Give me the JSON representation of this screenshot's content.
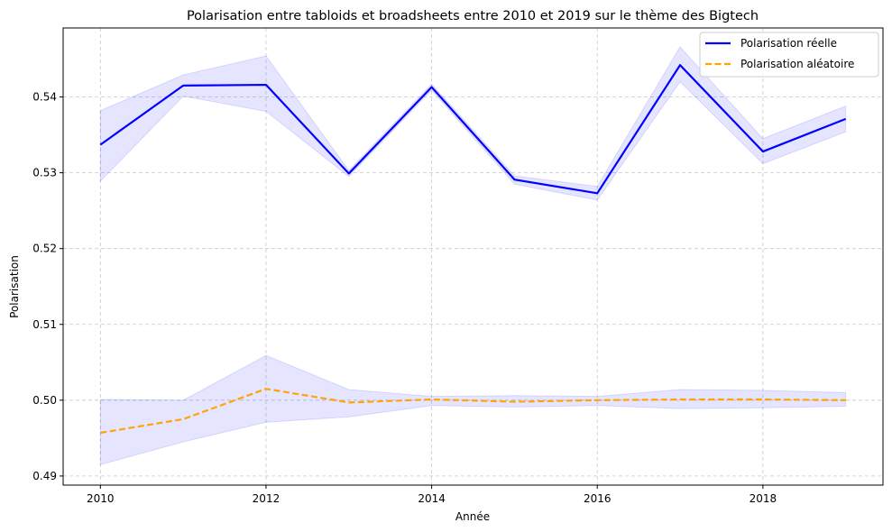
{
  "chart_data": {
    "type": "line",
    "title": "Polarisation entre tabloids et broadsheets entre 2010 et 2019 sur le thème des Bigtech",
    "xlabel": "Année",
    "ylabel": "Polarisation",
    "xlim": [
      2009.55,
      2019.45
    ],
    "ylim": [
      0.4888,
      0.5491
    ],
    "x_ticks": [
      2010,
      2012,
      2014,
      2016,
      2018
    ],
    "y_ticks": [
      0.49,
      0.5,
      0.51,
      0.52,
      0.53,
      0.54
    ],
    "y_tick_labels": [
      "0.49",
      "0.50",
      "0.51",
      "0.52",
      "0.53",
      "0.54"
    ],
    "grid": true,
    "legend_position": "top-right",
    "x": [
      2010,
      2011,
      2012,
      2013,
      2014,
      2015,
      2016,
      2017,
      2018,
      2019
    ],
    "series": [
      {
        "name": "Polarisation réelle",
        "color": "#0000ff",
        "style": "solid",
        "values": [
          0.5337,
          0.5415,
          0.5416,
          0.5299,
          0.5413,
          0.5291,
          0.5273,
          0.5442,
          0.5328,
          0.5371
        ],
        "band_lower": [
          0.5289,
          0.5401,
          0.5381,
          0.5295,
          0.5409,
          0.5285,
          0.5264,
          0.542,
          0.5312,
          0.5354
        ],
        "band_upper": [
          0.5382,
          0.5429,
          0.5454,
          0.5303,
          0.5417,
          0.5296,
          0.5282,
          0.5466,
          0.5345,
          0.5388
        ],
        "band_color": "#0000ff"
      },
      {
        "name": "Polarisation aléatoire",
        "color": "#ffa500",
        "style": "dashed",
        "values": [
          0.4957,
          0.4975,
          0.5015,
          0.4997,
          0.5001,
          0.4998,
          0.5,
          0.5001,
          0.5001,
          0.5
        ],
        "band_lower": [
          0.4915,
          0.4945,
          0.4971,
          0.4978,
          0.4993,
          0.4991,
          0.4993,
          0.4989,
          0.499,
          0.4992
        ],
        "band_upper": [
          0.5001,
          0.5,
          0.5059,
          0.5014,
          0.5005,
          0.5006,
          0.5005,
          0.5014,
          0.5013,
          0.501
        ],
        "band_color": "#0000ff"
      }
    ]
  }
}
